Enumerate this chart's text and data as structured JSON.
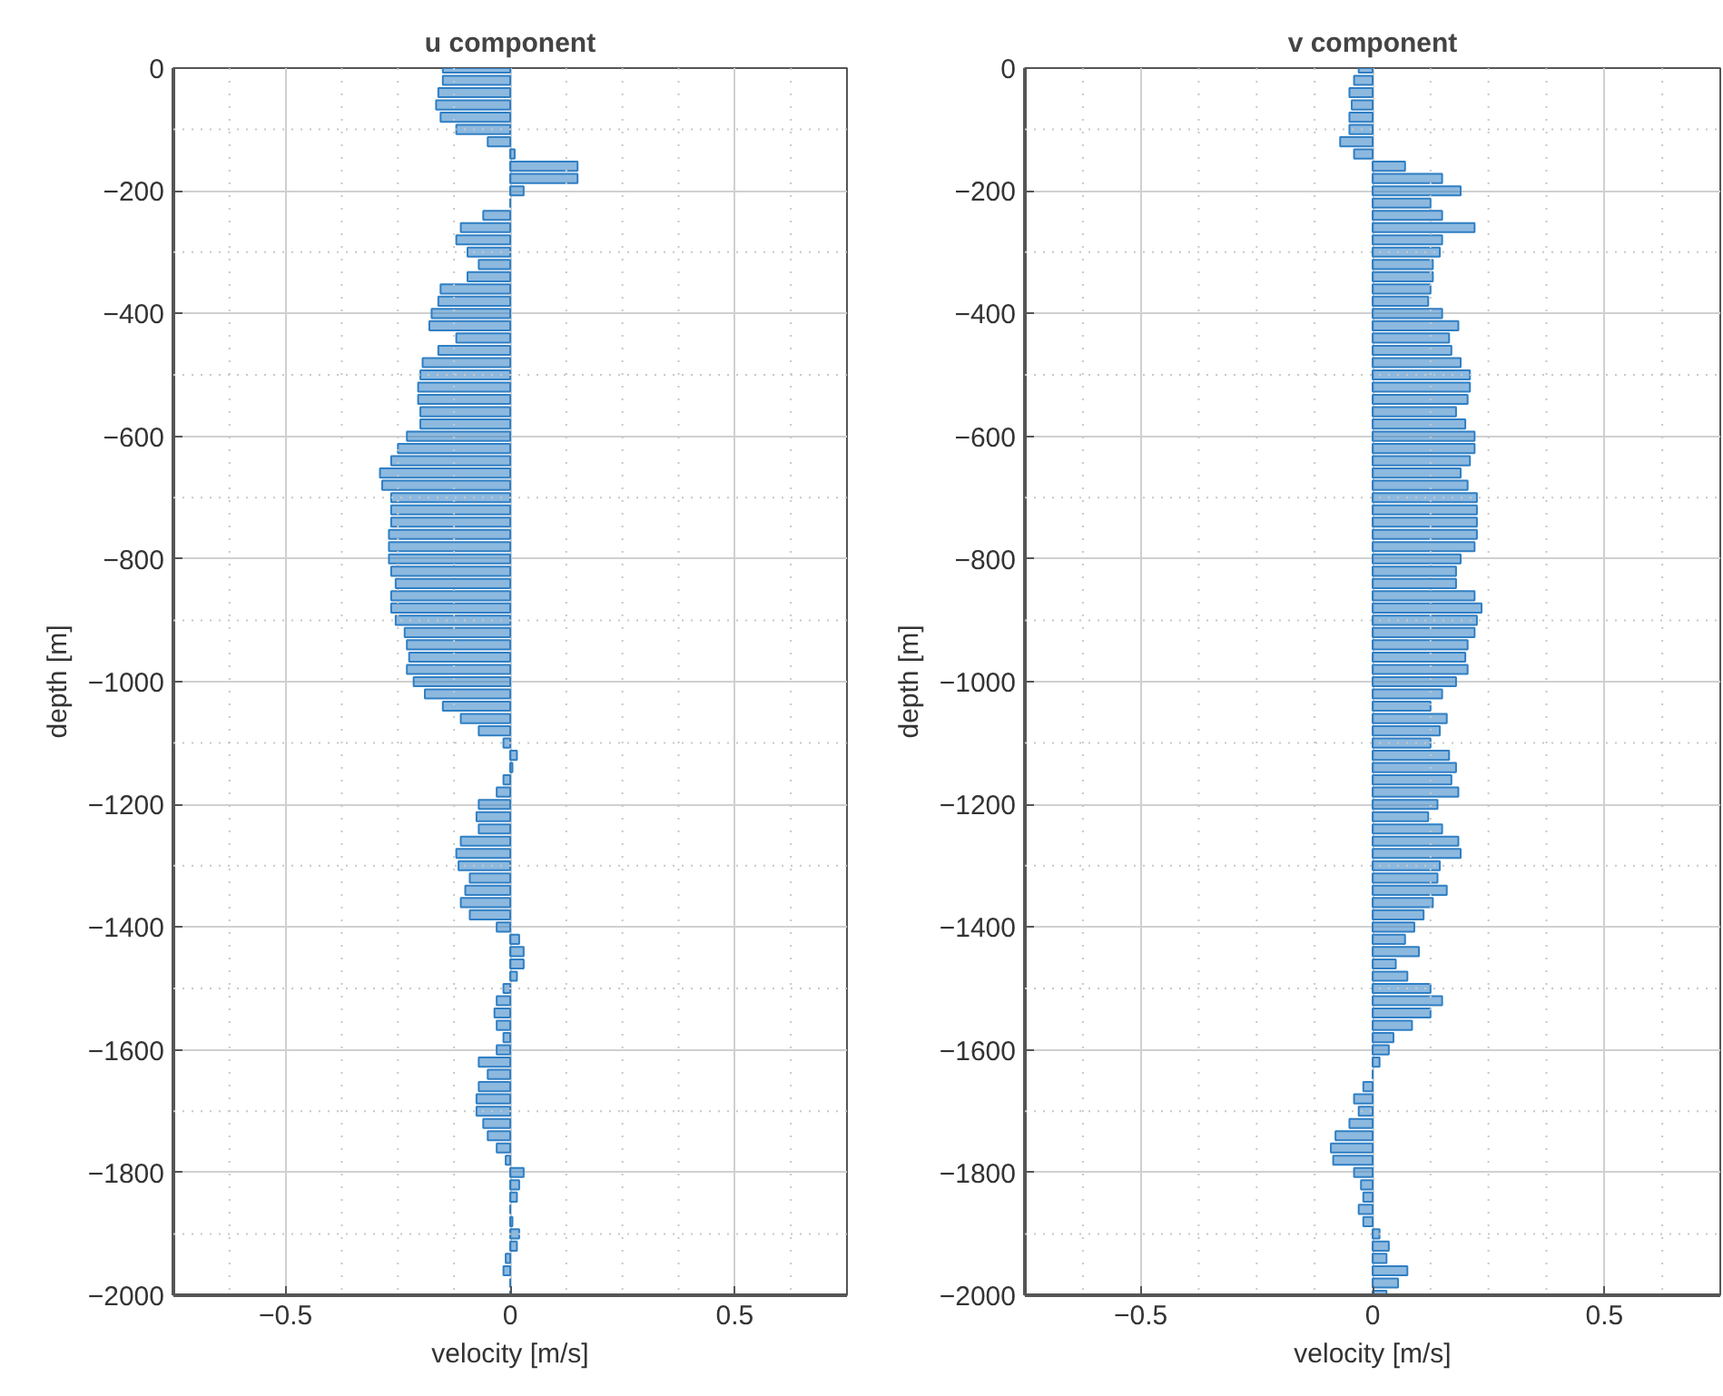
{
  "chart_data": [
    {
      "type": "bar",
      "orientation": "horizontal",
      "title": "u component",
      "xlabel": "velocity [m/s]",
      "ylabel": "depth [m]",
      "color": "#2f7fc4",
      "grid": true,
      "xlim": [
        -0.75,
        0.75
      ],
      "xticks": [
        -0.5,
        0,
        0.5
      ],
      "ylim": [
        -2000,
        0
      ],
      "yticks": [
        -2000,
        -1800,
        -1600,
        -1400,
        -1200,
        -1000,
        -800,
        -600,
        -400,
        -200,
        0
      ],
      "x": [
        0,
        -20,
        -40,
        -60,
        -80,
        -100,
        -120,
        -140,
        -160,
        -180,
        -200,
        -220,
        -240,
        -260,
        -280,
        -300,
        -320,
        -340,
        -360,
        -380,
        -400,
        -420,
        -440,
        -460,
        -480,
        -500,
        -520,
        -540,
        -560,
        -580,
        -600,
        -620,
        -640,
        -660,
        -680,
        -700,
        -720,
        -740,
        -760,
        -780,
        -800,
        -820,
        -840,
        -860,
        -880,
        -900,
        -920,
        -940,
        -960,
        -980,
        -1000,
        -1020,
        -1040,
        -1060,
        -1080,
        -1100,
        -1120,
        -1140,
        -1160,
        -1180,
        -1200,
        -1220,
        -1240,
        -1260,
        -1280,
        -1300,
        -1320,
        -1340,
        -1360,
        -1380,
        -1400,
        -1420,
        -1440,
        -1460,
        -1480,
        -1500,
        -1520,
        -1540,
        -1560,
        -1580,
        -1600,
        -1620,
        -1640,
        -1660,
        -1680,
        -1700,
        -1720,
        -1740,
        -1760,
        -1780,
        -1800,
        -1820,
        -1840,
        -1860,
        -1880,
        -1900,
        -1920,
        -1940,
        -1960,
        -1980,
        -2000
      ],
      "values": [
        -0.15,
        -0.15,
        -0.16,
        -0.165,
        -0.155,
        -0.12,
        -0.05,
        0.01,
        0.15,
        0.15,
        0.03,
        0,
        -0.06,
        -0.11,
        -0.12,
        -0.095,
        -0.07,
        -0.095,
        -0.155,
        -0.16,
        -0.175,
        -0.18,
        -0.12,
        -0.16,
        -0.195,
        -0.2,
        -0.205,
        -0.205,
        -0.2,
        -0.2,
        -0.23,
        -0.25,
        -0.265,
        -0.29,
        -0.285,
        -0.265,
        -0.265,
        -0.265,
        -0.27,
        -0.27,
        -0.27,
        -0.265,
        -0.255,
        -0.265,
        -0.265,
        -0.255,
        -0.235,
        -0.23,
        -0.225,
        -0.23,
        -0.215,
        -0.19,
        -0.15,
        -0.11,
        -0.07,
        -0.015,
        0.015,
        0.005,
        -0.015,
        -0.03,
        -0.07,
        -0.075,
        -0.07,
        -0.11,
        -0.12,
        -0.115,
        -0.09,
        -0.1,
        -0.11,
        -0.09,
        -0.03,
        0.02,
        0.03,
        0.03,
        0.015,
        -0.015,
        -0.03,
        -0.035,
        -0.03,
        -0.015,
        -0.03,
        -0.07,
        -0.05,
        -0.07,
        -0.075,
        -0.075,
        -0.06,
        -0.05,
        -0.03,
        -0.01,
        0.03,
        0.02,
        0.015,
        0,
        0.005,
        0.02,
        0.015,
        -0.01,
        -0.015,
        0,
        0
      ]
    },
    {
      "type": "bar",
      "orientation": "horizontal",
      "title": "v component",
      "xlabel": "velocity [m/s]",
      "ylabel": "depth [m]",
      "color": "#2f7fc4",
      "grid": true,
      "xlim": [
        -0.75,
        0.75
      ],
      "xticks": [
        -0.5,
        0,
        0.5
      ],
      "ylim": [
        -2000,
        0
      ],
      "yticks": [
        -2000,
        -1800,
        -1600,
        -1400,
        -1200,
        -1000,
        -800,
        -600,
        -400,
        -200,
        0
      ],
      "x": [
        0,
        -20,
        -40,
        -60,
        -80,
        -100,
        -120,
        -140,
        -160,
        -180,
        -200,
        -220,
        -240,
        -260,
        -280,
        -300,
        -320,
        -340,
        -360,
        -380,
        -400,
        -420,
        -440,
        -460,
        -480,
        -500,
        -520,
        -540,
        -560,
        -580,
        -600,
        -620,
        -640,
        -660,
        -680,
        -700,
        -720,
        -740,
        -760,
        -780,
        -800,
        -820,
        -840,
        -860,
        -880,
        -900,
        -920,
        -940,
        -960,
        -980,
        -1000,
        -1020,
        -1040,
        -1060,
        -1080,
        -1100,
        -1120,
        -1140,
        -1160,
        -1180,
        -1200,
        -1220,
        -1240,
        -1260,
        -1280,
        -1300,
        -1320,
        -1340,
        -1360,
        -1380,
        -1400,
        -1420,
        -1440,
        -1460,
        -1480,
        -1500,
        -1520,
        -1540,
        -1560,
        -1580,
        -1600,
        -1620,
        -1640,
        -1660,
        -1680,
        -1700,
        -1720,
        -1740,
        -1760,
        -1780,
        -1800,
        -1820,
        -1840,
        -1860,
        -1880,
        -1900,
        -1920,
        -1940,
        -1960,
        -1980,
        -2000
      ],
      "values": [
        -0.03,
        -0.04,
        -0.05,
        -0.045,
        -0.05,
        -0.05,
        -0.07,
        -0.04,
        0.07,
        0.15,
        0.19,
        0.125,
        0.15,
        0.22,
        0.15,
        0.145,
        0.13,
        0.13,
        0.125,
        0.12,
        0.15,
        0.185,
        0.165,
        0.17,
        0.19,
        0.21,
        0.21,
        0.205,
        0.18,
        0.2,
        0.22,
        0.22,
        0.21,
        0.19,
        0.205,
        0.225,
        0.225,
        0.225,
        0.225,
        0.22,
        0.19,
        0.18,
        0.18,
        0.22,
        0.235,
        0.225,
        0.22,
        0.205,
        0.2,
        0.205,
        0.18,
        0.15,
        0.125,
        0.16,
        0.145,
        0.125,
        0.165,
        0.18,
        0.17,
        0.185,
        0.14,
        0.12,
        0.15,
        0.185,
        0.19,
        0.145,
        0.14,
        0.16,
        0.13,
        0.11,
        0.09,
        0.07,
        0.1,
        0.05,
        0.075,
        0.125,
        0.15,
        0.125,
        0.085,
        0.045,
        0.035,
        0.015,
        0,
        -0.02,
        -0.04,
        -0.03,
        -0.05,
        -0.08,
        -0.09,
        -0.085,
        -0.04,
        -0.025,
        -0.02,
        -0.03,
        -0.02,
        0.015,
        0.035,
        0.03,
        0.075,
        0.055,
        0.03
      ]
    }
  ]
}
